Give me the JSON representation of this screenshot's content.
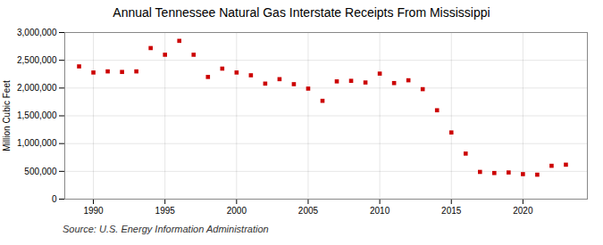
{
  "chart_data": {
    "type": "scatter",
    "title": "Annual Tennessee Natural Gas Interstate Receipts From Mississippi",
    "ylabel": "Million Cubic Feet",
    "source": "Source: U.S. Energy Information Administration",
    "x": [
      1989,
      1990,
      1991,
      1992,
      1993,
      1994,
      1995,
      1996,
      1997,
      1998,
      1999,
      2000,
      2001,
      2002,
      2003,
      2004,
      2005,
      2006,
      2007,
      2008,
      2009,
      2010,
      2011,
      2012,
      2013,
      2014,
      2015,
      2016,
      2017,
      2018,
      2019,
      2020,
      2021,
      2022,
      2023
    ],
    "values": [
      2390000,
      2280000,
      2300000,
      2290000,
      2300000,
      2720000,
      2600000,
      2850000,
      2600000,
      2200000,
      2350000,
      2280000,
      2230000,
      2080000,
      2160000,
      2070000,
      1990000,
      1770000,
      2120000,
      2130000,
      2100000,
      2260000,
      2090000,
      2140000,
      1980000,
      1600000,
      1200000,
      820000,
      490000,
      470000,
      480000,
      450000,
      440000,
      600000,
      620000
    ],
    "color": "#cc0000",
    "marker": "square",
    "xlim": [
      1988.0,
      2024.5
    ],
    "xticks": [
      1990,
      1995,
      2000,
      2005,
      2010,
      2015,
      2020
    ],
    "ylim": [
      0,
      3000000
    ],
    "yticks": [
      0,
      {
        "value": 500000,
        "label": "500,000"
      },
      {
        "value": 1000000,
        "label": "1,000,000"
      },
      {
        "value": 1500000,
        "label": "1,500,000"
      },
      {
        "value": 2000000,
        "label": "2,000,000"
      },
      {
        "value": 2500000,
        "label": "2,500,000"
      },
      {
        "value": 3000000,
        "label": "3,000,000"
      }
    ],
    "grid": true
  }
}
